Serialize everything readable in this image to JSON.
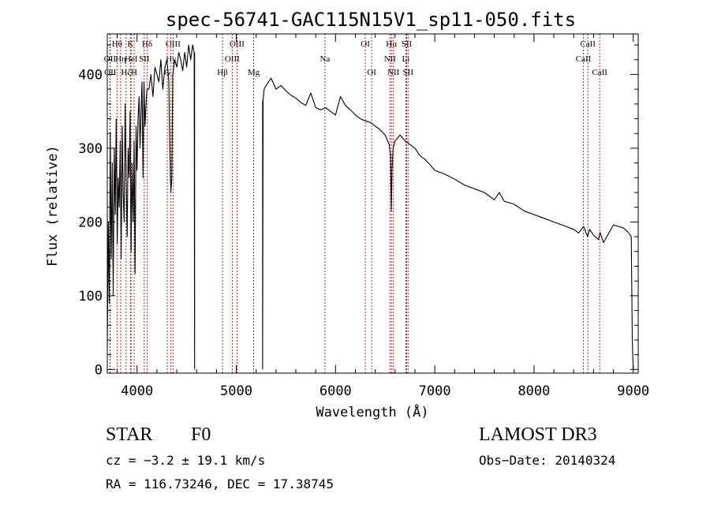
{
  "chart_data": {
    "type": "line",
    "title": "spec-56741-GAC115N15V1_sp11-050.fits",
    "xlabel": "Wavelength (Å)",
    "ylabel": "Flux (relative)",
    "xlim": [
      3700,
      9050
    ],
    "ylim": [
      -5,
      455
    ],
    "xticks": [
      4000,
      5000,
      6000,
      7000,
      8000,
      9000
    ],
    "yticks": [
      0,
      100,
      200,
      300,
      400
    ],
    "series": [
      {
        "name": "spectrum",
        "gaps": [
          [
            4580,
            5265
          ]
        ],
        "x": [
          3700,
          3710,
          3720,
          3730,
          3740,
          3750,
          3760,
          3770,
          3780,
          3790,
          3800,
          3810,
          3820,
          3830,
          3840,
          3850,
          3860,
          3870,
          3880,
          3890,
          3900,
          3910,
          3920,
          3930,
          3940,
          3950,
          3960,
          3970,
          3980,
          3990,
          4000,
          4010,
          4020,
          4030,
          4040,
          4050,
          4060,
          4070,
          4080,
          4090,
          4100,
          4120,
          4140,
          4160,
          4180,
          4200,
          4220,
          4240,
          4260,
          4280,
          4300,
          4320,
          4330,
          4340,
          4350,
          4360,
          4380,
          4400,
          4420,
          4440,
          4460,
          4480,
          4500,
          4520,
          4540,
          4560,
          4575,
          4580,
          5265,
          5270,
          5280,
          5300,
          5350,
          5400,
          5450,
          5500,
          5550,
          5600,
          5650,
          5700,
          5750,
          5800,
          5850,
          5900,
          5950,
          6000,
          6050,
          6100,
          6150,
          6200,
          6250,
          6300,
          6350,
          6400,
          6450,
          6500,
          6540,
          6555,
          6563,
          6570,
          6580,
          6600,
          6650,
          6700,
          6750,
          6800,
          6850,
          6900,
          6950,
          7000,
          7100,
          7200,
          7300,
          7400,
          7500,
          7600,
          7650,
          7700,
          7800,
          7900,
          8000,
          8100,
          8200,
          8300,
          8400,
          8450,
          8500,
          8540,
          8560,
          8600,
          8650,
          8665,
          8700,
          8800,
          8900,
          8950,
          8980,
          8990,
          9000
        ],
        "y": [
          30,
          200,
          90,
          320,
          150,
          280,
          100,
          300,
          210,
          340,
          170,
          260,
          220,
          310,
          150,
          330,
          240,
          200,
          360,
          260,
          180,
          300,
          260,
          350,
          160,
          280,
          200,
          310,
          130,
          330,
          270,
          340,
          370,
          300,
          350,
          390,
          260,
          390,
          330,
          360,
          380,
          380,
          400,
          370,
          410,
          400,
          390,
          420,
          380,
          410,
          420,
          390,
          300,
          240,
          260,
          400,
          420,
          410,
          430,
          420,
          405,
          430,
          410,
          440,
          420,
          440,
          430,
          0,
          0,
          365,
          380,
          385,
          395,
          380,
          385,
          378,
          372,
          368,
          362,
          358,
          375,
          355,
          352,
          355,
          350,
          345,
          370,
          358,
          352,
          345,
          340,
          337,
          335,
          330,
          325,
          318,
          305,
          290,
          215,
          270,
          300,
          310,
          318,
          310,
          305,
          300,
          290,
          285,
          278,
          270,
          265,
          258,
          250,
          245,
          240,
          230,
          240,
          228,
          224,
          215,
          210,
          205,
          200,
          195,
          190,
          185,
          194,
          180,
          190,
          182,
          176,
          186,
          172,
          196,
          192,
          186,
          180,
          40,
          0
        ]
      }
    ],
    "line_labels": [
      {
        "name": "Hθ",
        "x": 3798,
        "row": 0
      },
      {
        "name": "OII",
        "x": 3727,
        "row": 1
      },
      {
        "name": "Hη",
        "x": 3835,
        "row": 1
      },
      {
        "name": "OII",
        "x": 3730,
        "row": 2
      },
      {
        "name": "Hζ",
        "x": 3889,
        "row": 2
      },
      {
        "name": "K",
        "x": 3934,
        "row": 0
      },
      {
        "name": "HeI",
        "x": 3940,
        "row": 1
      },
      {
        "name": "H",
        "x": 3970,
        "row": 2
      },
      {
        "name": "Hδ",
        "x": 4102,
        "row": 0
      },
      {
        "name": "SII",
        "x": 4072,
        "row": 1
      },
      {
        "name": "OIII",
        "x": 4363,
        "row": 0
      },
      {
        "name": "Hγ",
        "x": 4341,
        "row": 1
      },
      {
        "name": "G",
        "x": 4305,
        "row": 2
      },
      {
        "name": "Hβ",
        "x": 4861,
        "row": 2
      },
      {
        "name": "OIII",
        "x": 4959,
        "row": 1
      },
      {
        "name": "OIII",
        "x": 5007,
        "row": 0
      },
      {
        "name": "Mg",
        "x": 5175,
        "row": 2
      },
      {
        "name": "Na",
        "x": 5893,
        "row": 1
      },
      {
        "name": "OI",
        "x": 6300,
        "row": 0
      },
      {
        "name": "OI",
        "x": 6364,
        "row": 2
      },
      {
        "name": "Hα",
        "x": 6563,
        "row": 0
      },
      {
        "name": "NII",
        "x": 6548,
        "row": 1
      },
      {
        "name": "NII",
        "x": 6583,
        "row": 2
      },
      {
        "name": "SII",
        "x": 6717,
        "row": 0
      },
      {
        "name": "Li",
        "x": 6708,
        "row": 1
      },
      {
        "name": "SII",
        "x": 6731,
        "row": 2
      },
      {
        "name": "CaII",
        "x": 8542,
        "row": 0
      },
      {
        "name": "CaII",
        "x": 8498,
        "row": 1
      },
      {
        "name": "CaII",
        "x": 8662,
        "row": 2
      }
    ],
    "line_color": "#b22222"
  },
  "info": {
    "object_class": "STAR",
    "subclass": "F0",
    "redshift": "cz = −3.2 ± 19.1 km/s",
    "coords": "RA = 116.73246, DEC =  17.38745",
    "survey": "LAMOST DR3",
    "obs_date": "Obs−Date: 20140324"
  }
}
